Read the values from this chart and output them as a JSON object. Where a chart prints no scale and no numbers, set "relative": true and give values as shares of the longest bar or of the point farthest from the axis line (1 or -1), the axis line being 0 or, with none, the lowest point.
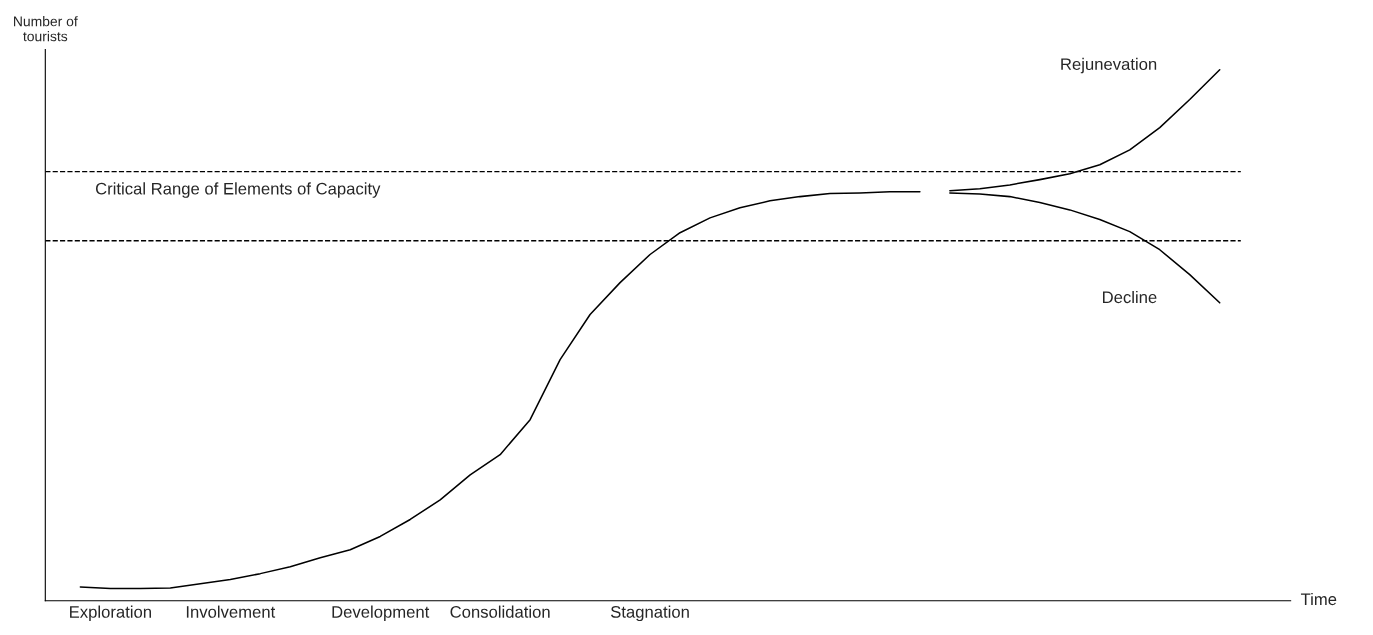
{
  "chart_data": {
    "type": "line",
    "relative": true,
    "xlabel": "Time",
    "ylabel": "Number of\ntourists",
    "categories": [
      null,
      "Exploration",
      null,
      null,
      null,
      "Involvement",
      null,
      null,
      null,
      null,
      "Development",
      null,
      null,
      null,
      "Consolidation",
      null,
      null,
      null,
      null,
      "Stagnation",
      null,
      null,
      null,
      null,
      null,
      null,
      null,
      null,
      null,
      null,
      null,
      null,
      null,
      null,
      null,
      null,
      null,
      null,
      null
    ],
    "tick_labels": "x",
    "marker": "none",
    "line_style": "solid",
    "series": [
      {
        "color": "#000000",
        "values": [
          0.026,
          0.023,
          0.023,
          0.024,
          0.032,
          0.04,
          0.051,
          0.064,
          0.081,
          0.096,
          0.121,
          0.153,
          0.19,
          0.237,
          0.275,
          0.341,
          0.454,
          0.539,
          0.599,
          0.652,
          0.693,
          0.721,
          0.74,
          0.753,
          0.761,
          0.767,
          0.768,
          0.77,
          0.77,
          null,
          null,
          null,
          null,
          null,
          null,
          null,
          null,
          null,
          null
        ]
      },
      {
        "name": "Rejunevation",
        "color": "#000000",
        "values": [
          null,
          null,
          null,
          null,
          null,
          null,
          null,
          null,
          null,
          null,
          null,
          null,
          null,
          null,
          null,
          null,
          null,
          null,
          null,
          null,
          null,
          null,
          null,
          null,
          null,
          null,
          null,
          null,
          null,
          0.772,
          0.776,
          0.783,
          0.793,
          0.804,
          0.821,
          0.849,
          0.891,
          0.944,
          1.0
        ]
      },
      {
        "name": "Decline",
        "color": "#000000",
        "values": [
          null,
          null,
          null,
          null,
          null,
          null,
          null,
          null,
          null,
          null,
          null,
          null,
          null,
          null,
          null,
          null,
          null,
          null,
          null,
          null,
          null,
          null,
          null,
          null,
          null,
          null,
          null,
          null,
          null,
          0.768,
          0.766,
          0.761,
          0.75,
          0.736,
          0.718,
          0.695,
          0.661,
          0.614,
          0.561
        ]
      }
    ],
    "ref_lines": [
      {
        "axis": "y",
        "value": 0.808,
        "line_style": "dashed",
        "color": "#000000"
      },
      {
        "axis": "y",
        "value": 0.678,
        "line_style": "dashed",
        "color": "#000000"
      }
    ],
    "annotations": [
      "Critical Range of Elements of Capacity"
    ]
  }
}
